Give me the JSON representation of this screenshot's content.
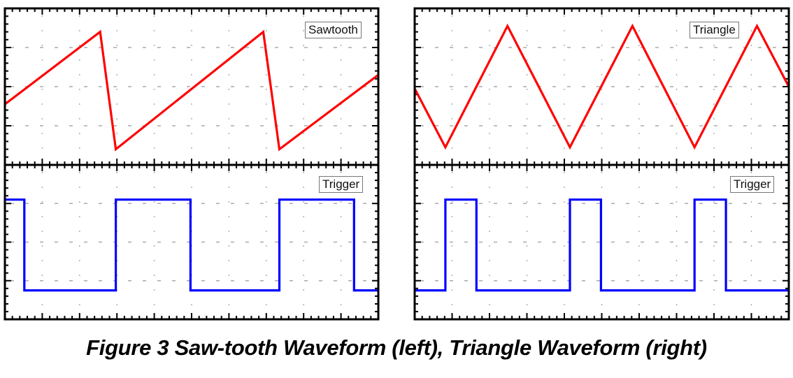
{
  "caption": "Figure 3  Saw-tooth Waveform (left), Triangle Waveform (right)",
  "colors": {
    "signal": "#ff0000",
    "trigger": "#0000ff",
    "frame": "#000000",
    "grid": "#aaaaaa",
    "legend_border": "#777777"
  },
  "chart_data": [
    {
      "type": "line",
      "title": "Sawtooth",
      "panel": "left-top",
      "legend": "Sawtooth",
      "grid": true,
      "xlim": [
        0,
        10
      ],
      "ylim": [
        0,
        4
      ],
      "series": [
        {
          "name": "Sawtooth",
          "color": "#ff0000",
          "x": [
            0,
            2.55,
            2.97,
            6.92,
            7.35,
            10
          ],
          "y": [
            1.55,
            3.4,
            0.4,
            3.4,
            0.4,
            2.3
          ]
        }
      ]
    },
    {
      "type": "line",
      "title": "Trigger",
      "panel": "left-bottom",
      "legend": "Trigger",
      "grid": true,
      "xlim": [
        0,
        10
      ],
      "ylim": [
        0,
        4
      ],
      "series": [
        {
          "name": "Trigger",
          "color": "#0000ff",
          "x": [
            0,
            0.52,
            0.52,
            2.97,
            2.97,
            4.97,
            4.97,
            7.35,
            7.35,
            9.35,
            9.35,
            10
          ],
          "y": [
            3.1,
            3.1,
            0.75,
            0.75,
            3.1,
            3.1,
            0.75,
            0.75,
            3.1,
            3.1,
            0.75,
            0.75
          ]
        }
      ]
    },
    {
      "type": "line",
      "title": "Triangle",
      "panel": "right-top",
      "legend": "Triangle",
      "grid": true,
      "xlim": [
        0,
        10
      ],
      "ylim": [
        0,
        4
      ],
      "series": [
        {
          "name": "Triangle",
          "color": "#ff0000",
          "x": [
            0,
            0.82,
            2.48,
            4.15,
            5.82,
            7.48,
            9.15,
            10
          ],
          "y": [
            1.95,
            0.45,
            3.55,
            0.45,
            3.55,
            0.45,
            3.55,
            2.0
          ]
        }
      ]
    },
    {
      "type": "line",
      "title": "Trigger",
      "panel": "right-bottom",
      "legend": "Trigger",
      "grid": true,
      "xlim": [
        0,
        10
      ],
      "ylim": [
        0,
        4
      ],
      "series": [
        {
          "name": "Trigger",
          "color": "#0000ff",
          "x": [
            0,
            0.82,
            0.82,
            1.65,
            1.65,
            4.15,
            4.15,
            4.98,
            4.98,
            7.48,
            7.48,
            8.32,
            8.32,
            10
          ],
          "y": [
            0.75,
            0.75,
            3.1,
            3.1,
            0.75,
            0.75,
            3.1,
            3.1,
            0.75,
            0.75,
            3.1,
            3.1,
            0.75,
            0.75
          ]
        }
      ]
    }
  ]
}
